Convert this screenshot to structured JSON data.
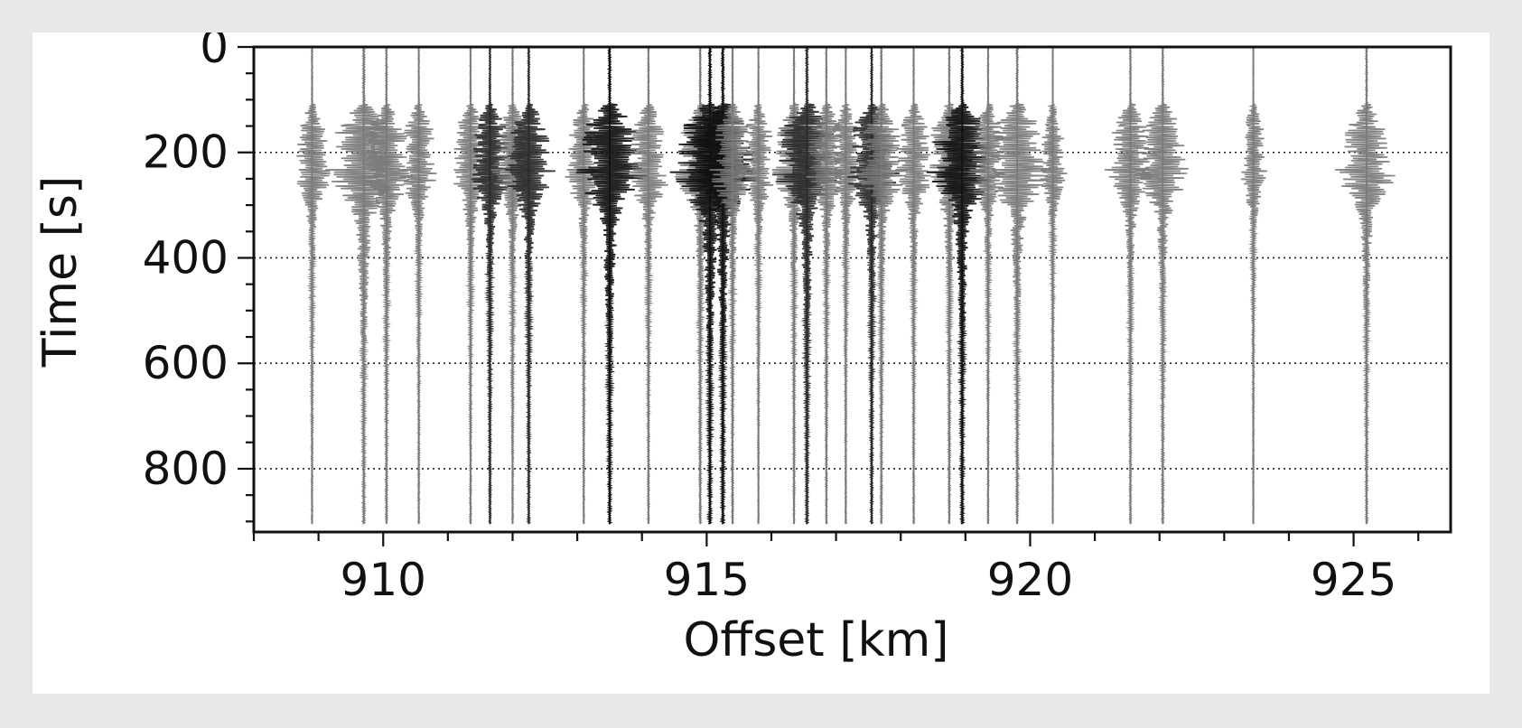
{
  "chart_data": {
    "type": "scatter",
    "title": "",
    "xlabel": "Offset [km]",
    "ylabel": "Time [s]",
    "xlim": [
      908.0,
      926.5
    ],
    "ylim": [
      0,
      920
    ],
    "y_inverted": true,
    "x_ticks": [
      910,
      915,
      920,
      925
    ],
    "y_ticks": [
      0,
      200,
      400,
      600,
      800
    ],
    "grid": "horizontal dotted at y ticks",
    "legend": "none",
    "colors": {
      "trace_gray": "#7a7a7a",
      "trace_dark": "#2a2a2a",
      "trace_black": "#111111",
      "grid": "#222222",
      "frame": "#111111"
    },
    "traces": [
      {
        "offset": 908.9,
        "amp": 0.35,
        "shade": "gray"
      },
      {
        "offset": 909.7,
        "amp": 0.9,
        "shade": "gray"
      },
      {
        "offset": 910.05,
        "amp": 0.55,
        "shade": "gray"
      },
      {
        "offset": 910.55,
        "amp": 0.35,
        "shade": "gray"
      },
      {
        "offset": 911.35,
        "amp": 0.4,
        "shade": "gray"
      },
      {
        "offset": 911.65,
        "amp": 0.45,
        "shade": "dark"
      },
      {
        "offset": 912.0,
        "amp": 0.4,
        "shade": "gray"
      },
      {
        "offset": 912.25,
        "amp": 0.55,
        "shade": "dark"
      },
      {
        "offset": 913.1,
        "amp": 0.35,
        "shade": "gray"
      },
      {
        "offset": 913.5,
        "amp": 0.9,
        "shade": "black"
      },
      {
        "offset": 914.1,
        "amp": 0.45,
        "shade": "gray"
      },
      {
        "offset": 914.9,
        "amp": 0.55,
        "shade": "gray"
      },
      {
        "offset": 915.05,
        "amp": 1.0,
        "shade": "black"
      },
      {
        "offset": 915.25,
        "amp": 0.9,
        "shade": "black"
      },
      {
        "offset": 915.4,
        "amp": 0.45,
        "shade": "gray"
      },
      {
        "offset": 915.8,
        "amp": 0.3,
        "shade": "gray"
      },
      {
        "offset": 916.35,
        "amp": 0.45,
        "shade": "gray"
      },
      {
        "offset": 916.55,
        "amp": 0.8,
        "shade": "dark"
      },
      {
        "offset": 916.85,
        "amp": 0.4,
        "shade": "gray"
      },
      {
        "offset": 917.15,
        "amp": 0.3,
        "shade": "gray"
      },
      {
        "offset": 917.55,
        "amp": 0.6,
        "shade": "dark"
      },
      {
        "offset": 917.7,
        "amp": 0.5,
        "shade": "gray"
      },
      {
        "offset": 918.2,
        "amp": 0.4,
        "shade": "gray"
      },
      {
        "offset": 918.75,
        "amp": 0.5,
        "shade": "gray"
      },
      {
        "offset": 918.95,
        "amp": 0.85,
        "shade": "black"
      },
      {
        "offset": 919.35,
        "amp": 0.35,
        "shade": "gray"
      },
      {
        "offset": 919.8,
        "amp": 0.75,
        "shade": "gray"
      },
      {
        "offset": 920.35,
        "amp": 0.2,
        "shade": "gray"
      },
      {
        "offset": 921.55,
        "amp": 0.5,
        "shade": "gray"
      },
      {
        "offset": 922.05,
        "amp": 0.6,
        "shade": "gray"
      },
      {
        "offset": 923.45,
        "amp": 0.2,
        "shade": "gray"
      },
      {
        "offset": 925.2,
        "amp": 0.65,
        "shade": "gray"
      }
    ]
  }
}
